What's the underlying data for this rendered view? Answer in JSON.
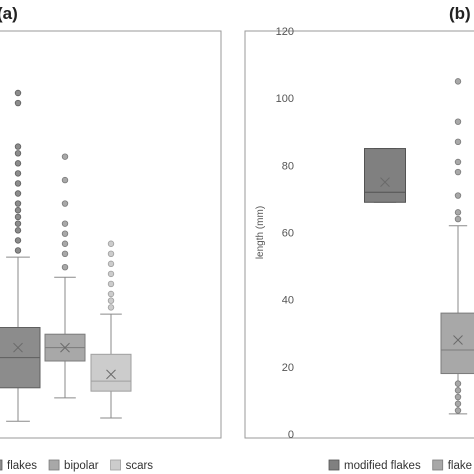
{
  "panels": {
    "a_label": "(a)",
    "b_label": "(b)"
  },
  "chart_data": [
    {
      "type": "box",
      "panel": "(a)",
      "ylabel": "",
      "grid": false,
      "legend_position": "bottom",
      "series": [
        {
          "name": "flakes",
          "color": "#8c8c8c",
          "min": 2,
          "q1": 12,
          "median": 21,
          "q3": 30,
          "max": 51,
          "mean": 24,
          "outliers": [
            53,
            56,
            59,
            61,
            63,
            65,
            67,
            70,
            73,
            76,
            79,
            82,
            84,
            97,
            100
          ]
        },
        {
          "name": "bipolar",
          "color": "#a8a8a8",
          "min": 9,
          "q1": 20,
          "median": 24,
          "q3": 28,
          "max": 45,
          "mean": 24,
          "outliers": [
            48,
            52,
            55,
            58,
            61,
            67,
            74,
            81
          ]
        },
        {
          "name": "scars",
          "color": "#cccccc",
          "min": 3,
          "q1": 11,
          "median": 14,
          "q3": 22,
          "max": 34,
          "mean": 16,
          "outliers": [
            36,
            38,
            40,
            43,
            46,
            49,
            52,
            55
          ]
        }
      ]
    },
    {
      "type": "box",
      "panel": "(b)",
      "ylabel": "length (mm)",
      "ylim": [
        0,
        120
      ],
      "yticks": [
        0,
        20,
        40,
        60,
        80,
        100,
        120
      ],
      "grid": false,
      "legend_position": "bottom",
      "series": [
        {
          "name": "modified flakes",
          "color": "#808080",
          "min": 69,
          "q1": 69,
          "median": 72,
          "q3": 85,
          "max": 85,
          "mean": 75,
          "outliers": []
        },
        {
          "name": "flake",
          "color": "#a8a8a8",
          "min": 6,
          "q1": 18,
          "median": 25,
          "q3": 36,
          "max": 62,
          "mean": 28,
          "outliers": [
            7,
            9,
            11,
            13,
            15,
            64,
            66,
            71,
            78,
            81,
            87,
            93,
            105
          ]
        }
      ]
    }
  ]
}
